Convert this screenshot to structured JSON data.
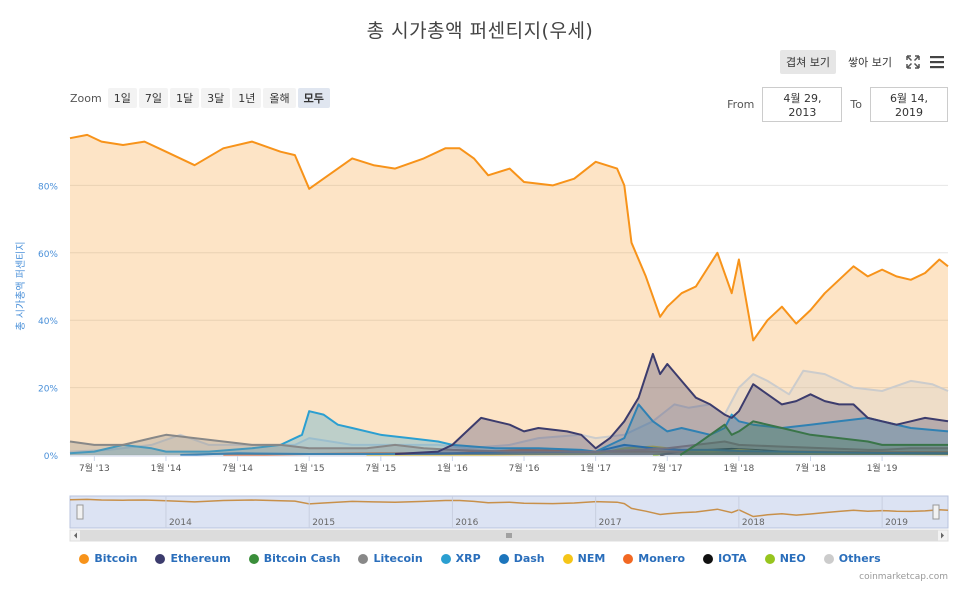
{
  "title": "총 시가총액 퍼센티지(우세)",
  "modes": {
    "overlap": "겹쳐 보기",
    "stacked": "쌓아 보기"
  },
  "zoom": {
    "label": "Zoom",
    "buttons": [
      "1일",
      "7일",
      "1달",
      "3달",
      "1년",
      "올해",
      "모두"
    ],
    "active": "모두"
  },
  "range": {
    "from_label": "From",
    "from": "4월 29, 2013",
    "to_label": "To",
    "to": "6월 14, 2019"
  },
  "credit": "coinmarketcap.com",
  "chart_data": {
    "type": "area",
    "title": "총 시가총액 퍼센티지(우세)",
    "ylabel": "총 시가총액 퍼센티지",
    "ylim": [
      0,
      100
    ],
    "yticks": [
      0,
      20,
      40,
      60,
      80
    ],
    "ytick_labels": [
      "0%",
      "20%",
      "40%",
      "60%",
      "80%"
    ],
    "x_range": [
      2013.33,
      2019.46
    ],
    "xticks": [
      2013.5,
      2014.0,
      2014.5,
      2015.0,
      2015.5,
      2016.0,
      2016.5,
      2017.0,
      2017.5,
      2018.0,
      2018.5,
      2019.0
    ],
    "xtick_labels": [
      "7월 '13",
      "1월 '14",
      "7월 '14",
      "1월 '15",
      "7월 '15",
      "1월 '16",
      "7월 '16",
      "1월 '17",
      "7월 '17",
      "1월 '18",
      "7월 '18",
      "1월 '19"
    ],
    "navigator_labels": [
      {
        "x": 2014.0,
        "label": "2014"
      },
      {
        "x": 2015.0,
        "label": "2015"
      },
      {
        "x": 2016.0,
        "label": "2016"
      },
      {
        "x": 2017.0,
        "label": "2017"
      },
      {
        "x": 2018.0,
        "label": "2018"
      },
      {
        "x": 2019.0,
        "label": "2019"
      }
    ],
    "series": [
      {
        "name": "Bitcoin",
        "color": "#f7931a",
        "x": [
          2013.33,
          2013.45,
          2013.55,
          2013.7,
          2013.85,
          2014.0,
          2014.2,
          2014.4,
          2014.6,
          2014.8,
          2014.9,
          2015.0,
          2015.1,
          2015.3,
          2015.45,
          2015.6,
          2015.8,
          2015.95,
          2016.05,
          2016.15,
          2016.25,
          2016.4,
          2016.5,
          2016.7,
          2016.85,
          2017.0,
          2017.15,
          2017.2,
          2017.25,
          2017.35,
          2017.45,
          2017.5,
          2017.6,
          2017.7,
          2017.85,
          2017.95,
          2018.0,
          2018.1,
          2018.2,
          2018.3,
          2018.4,
          2018.5,
          2018.6,
          2018.7,
          2018.8,
          2018.9,
          2019.0,
          2019.1,
          2019.2,
          2019.3,
          2019.4,
          2019.46
        ],
        "values": [
          94,
          95,
          93,
          92,
          93,
          90,
          86,
          91,
          93,
          90,
          89,
          79,
          82,
          88,
          86,
          85,
          88,
          91,
          91,
          88,
          83,
          85,
          81,
          80,
          82,
          87,
          85,
          80,
          63,
          53,
          41,
          44,
          48,
          50,
          60,
          48,
          58,
          34,
          40,
          44,
          39,
          43,
          48,
          52,
          56,
          53,
          55,
          53,
          52,
          54,
          58,
          56
        ]
      },
      {
        "name": "Ethereum",
        "color": "#3c3c6d",
        "x": [
          2015.6,
          2015.9,
          2016.0,
          2016.1,
          2016.2,
          2016.3,
          2016.4,
          2016.5,
          2016.6,
          2016.8,
          2016.9,
          2017.0,
          2017.1,
          2017.2,
          2017.3,
          2017.4,
          2017.45,
          2017.5,
          2017.6,
          2017.7,
          2017.8,
          2017.9,
          2017.95,
          2018.0,
          2018.1,
          2018.2,
          2018.3,
          2018.4,
          2018.5,
          2018.6,
          2018.7,
          2018.8,
          2018.9,
          2019.0,
          2019.1,
          2019.2,
          2019.3,
          2019.46
        ],
        "values": [
          0.3,
          1,
          3,
          7,
          11,
          10,
          9,
          7,
          8,
          7,
          6,
          2,
          5,
          10,
          17,
          30,
          24,
          27,
          22,
          17,
          15,
          12,
          11,
          13,
          21,
          18,
          15,
          16,
          18,
          16,
          15,
          15,
          11,
          10,
          9,
          10,
          11,
          10
        ]
      },
      {
        "name": "Bitcoin Cash",
        "color": "#3a8e3a",
        "x": [
          2017.59,
          2017.7,
          2017.8,
          2017.9,
          2017.95,
          2018.0,
          2018.1,
          2018.3,
          2018.5,
          2018.7,
          2018.9,
          2019.0,
          2019.2,
          2019.46
        ],
        "values": [
          0,
          3,
          6,
          9,
          6,
          7,
          10,
          8,
          6,
          5,
          4,
          3,
          3,
          3
        ]
      },
      {
        "name": "Litecoin",
        "color": "#888888",
        "x": [
          2013.33,
          2013.5,
          2013.7,
          2013.9,
          2014.0,
          2014.2,
          2014.4,
          2014.6,
          2014.8,
          2015.0,
          2015.2,
          2015.4,
          2015.6,
          2015.8,
          2016.0,
          2016.4,
          2016.8,
          2017.0,
          2017.3,
          2017.5,
          2017.7,
          2017.9,
          2018.0,
          2018.3,
          2018.6,
          2018.9,
          2019.0,
          2019.2,
          2019.46
        ],
        "values": [
          4,
          3,
          3,
          5,
          6,
          5,
          4,
          3,
          3,
          2,
          2,
          2,
          3,
          2,
          1.5,
          1,
          1,
          1,
          1.5,
          2,
          3,
          4,
          3,
          2.5,
          2,
          1.5,
          1.5,
          2,
          2
        ]
      },
      {
        "name": "XRP",
        "color": "#2b9fd1",
        "x": [
          2013.33,
          2013.5,
          2013.7,
          2013.9,
          2014.0,
          2014.3,
          2014.6,
          2014.8,
          2014.95,
          2015.0,
          2015.1,
          2015.2,
          2015.3,
          2015.5,
          2015.7,
          2015.9,
          2016.0,
          2016.3,
          2016.6,
          2016.9,
          2017.0,
          2017.2,
          2017.3,
          2017.4,
          2017.5,
          2017.6,
          2017.7,
          2017.8,
          2017.9,
          2017.95,
          2018.0,
          2018.1,
          2018.3,
          2018.5,
          2018.7,
          2018.9,
          2019.0,
          2019.2,
          2019.46
        ],
        "values": [
          0.5,
          1,
          3,
          2,
          1,
          1,
          2,
          3,
          6,
          13,
          12,
          9,
          8,
          6,
          5,
          4,
          3,
          2,
          2,
          1.5,
          1,
          5,
          15,
          10,
          7,
          8,
          7,
          6,
          8,
          12,
          10,
          9,
          8,
          9,
          10,
          11,
          10,
          8,
          7
        ]
      },
      {
        "name": "Dash",
        "color": "#1c75bc",
        "x": [
          2014.1,
          2014.5,
          2015.0,
          2015.5,
          2016.0,
          2016.5,
          2017.0,
          2017.1,
          2017.2,
          2017.4,
          2017.6,
          2017.8,
          2018.0,
          2018.3,
          2018.6,
          2019.0,
          2019.46
        ],
        "values": [
          0,
          0.5,
          0.3,
          0.3,
          0.5,
          0.8,
          1,
          2,
          3,
          2,
          1.5,
          1.5,
          1.2,
          1,
          0.8,
          0.6,
          0.5
        ]
      },
      {
        "name": "NEM",
        "color": "#f5c518",
        "x": [
          2015.4,
          2016.0,
          2016.5,
          2017.0,
          2017.2,
          2017.4,
          2017.6,
          2017.8,
          2018.0,
          2018.3,
          2018.6,
          2019.0,
          2019.46
        ],
        "values": [
          0,
          0.1,
          0.2,
          0.3,
          2,
          2.5,
          1.5,
          1,
          1.5,
          0.7,
          0.4,
          0.3,
          0.2
        ]
      },
      {
        "name": "Monero",
        "color": "#f26822",
        "x": [
          2014.4,
          2015.0,
          2015.5,
          2016.0,
          2016.5,
          2016.8,
          2017.0,
          2017.5,
          2018.0,
          2018.5,
          2019.0,
          2019.46
        ],
        "values": [
          0,
          0.3,
          0.5,
          0.5,
          1.5,
          1.2,
          1,
          1,
          1,
          1,
          0.8,
          0.8
        ]
      },
      {
        "name": "IOTA",
        "color": "#111111",
        "x": [
          2017.45,
          2017.6,
          2017.8,
          2017.95,
          2018.1,
          2018.3,
          2018.6,
          2019.0,
          2019.46
        ],
        "values": [
          0,
          1.2,
          1.5,
          1.8,
          1.5,
          1,
          0.8,
          0.5,
          0.3
        ]
      },
      {
        "name": "NEO",
        "color": "#97c51e",
        "x": [
          2017.4,
          2017.6,
          2017.8,
          2018.0,
          2018.2,
          2018.5,
          2018.8,
          2019.0,
          2019.46
        ],
        "values": [
          0,
          1,
          1,
          1.5,
          1.2,
          0.8,
          0.5,
          0.5,
          0.4
        ]
      },
      {
        "name": "Others",
        "color": "#cccccc",
        "x": [
          2013.33,
          2013.6,
          2013.9,
          2014.1,
          2014.3,
          2014.6,
          2014.9,
          2015.0,
          2015.3,
          2015.6,
          2015.9,
          2016.1,
          2016.4,
          2016.6,
          2016.9,
          2017.0,
          2017.2,
          2017.4,
          2017.55,
          2017.65,
          2017.8,
          2017.9,
          2018.0,
          2018.1,
          2018.2,
          2018.35,
          2018.45,
          2018.6,
          2018.8,
          2019.0,
          2019.2,
          2019.35,
          2019.46
        ],
        "values": [
          1,
          1.5,
          3,
          6,
          3,
          3,
          3,
          5,
          3,
          3,
          3,
          2,
          3,
          5,
          6,
          5,
          6,
          10,
          15,
          14,
          15,
          12,
          20,
          24,
          22,
          18,
          25,
          24,
          20,
          19,
          22,
          21,
          19
        ]
      }
    ]
  }
}
